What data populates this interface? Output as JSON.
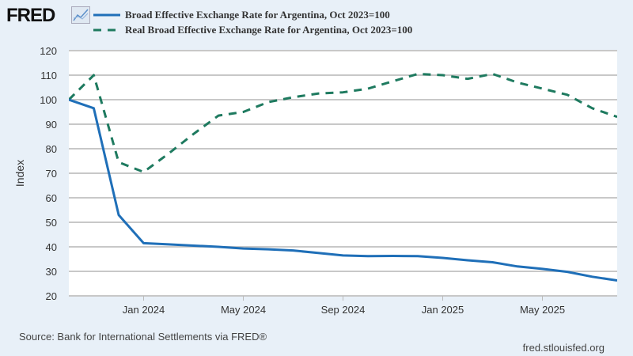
{
  "header": {
    "logo": "FRED",
    "logo_icon": "line-chart-icon"
  },
  "chart_data": {
    "type": "line",
    "title": "",
    "ylabel": "Index",
    "xlabel": "",
    "ylim": [
      20,
      120
    ],
    "yticks": [
      20,
      30,
      40,
      50,
      60,
      70,
      80,
      90,
      100,
      110,
      120
    ],
    "xtick_labels": [
      {
        "label": "Jan 2024",
        "index": 3
      },
      {
        "label": "May 2024",
        "index": 7
      },
      {
        "label": "Sep 2024",
        "index": 11
      },
      {
        "label": "Jan 2025",
        "index": 15
      },
      {
        "label": "May 2025",
        "index": 19
      }
    ],
    "x": [
      "2023-10",
      "2023-11",
      "2023-12",
      "2024-01",
      "2024-02",
      "2024-03",
      "2024-04",
      "2024-05",
      "2024-06",
      "2024-07",
      "2024-08",
      "2024-09",
      "2024-10",
      "2024-11",
      "2024-12",
      "2025-01",
      "2025-02",
      "2025-03",
      "2025-04",
      "2025-05",
      "2025-06",
      "2025-07",
      "2025-08"
    ],
    "grid": true,
    "legend": "top",
    "series": [
      {
        "name": "Broad Effective Exchange Rate for Argentina, Oct 2023=100",
        "color": "#1f6fb8",
        "style": "solid",
        "values": [
          100,
          96.5,
          53,
          41.5,
          41,
          40.5,
          40,
          39.3,
          39,
          38.5,
          37.5,
          36.5,
          36.2,
          36.3,
          36.2,
          35.5,
          34.5,
          33.7,
          32,
          31,
          29.8,
          27.8,
          26.3
        ]
      },
      {
        "name": "Real Broad Effective Exchange Rate for Argentina, Oct 2023=100",
        "color": "#1e7a5f",
        "style": "dashed",
        "values": [
          100,
          110,
          74.5,
          70.5,
          78,
          86,
          93.5,
          95,
          99,
          101,
          102.5,
          103,
          104.5,
          107.5,
          110.5,
          110,
          108.5,
          110.5,
          107,
          104.5,
          102,
          96.5,
          93
        ]
      }
    ]
  },
  "footer": {
    "source": "Source: Bank for International Settlements via FRED®",
    "site": "fred.stlouisfed.org"
  }
}
